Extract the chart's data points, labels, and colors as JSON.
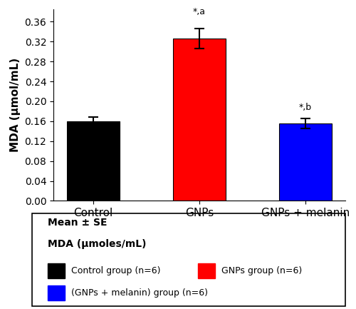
{
  "categories": [
    "Control",
    "GNPs",
    "GNPs + melanin"
  ],
  "values": [
    0.16,
    0.326,
    0.155
  ],
  "errors": [
    0.008,
    0.02,
    0.01
  ],
  "bar_colors": [
    "#000000",
    "#ff0000",
    "#0000ff"
  ],
  "ylabel": "MDA (μmol/mL)",
  "ylim": [
    0,
    0.385
  ],
  "yticks": [
    0.0,
    0.04,
    0.08,
    0.12,
    0.16,
    0.2,
    0.24,
    0.28,
    0.32,
    0.36
  ],
  "annotations": [
    "",
    "*,a",
    "*,b"
  ],
  "annotation_offsets": [
    0,
    0.024,
    0.013
  ],
  "legend_title_line1": "Mean ± SE",
  "legend_title_line2": "MDA (μmoles/mL)",
  "legend_entries": [
    {
      "label": "Control group (n=6)",
      "color": "#000000"
    },
    {
      "label": "GNPs group (n=6)",
      "color": "#ff0000"
    },
    {
      "label": "(GNPs + melanin) group (n=6)",
      "color": "#0000ff"
    }
  ],
  "bar_width": 0.5,
  "figsize": [
    5.0,
    4.33
  ],
  "dpi": 100
}
